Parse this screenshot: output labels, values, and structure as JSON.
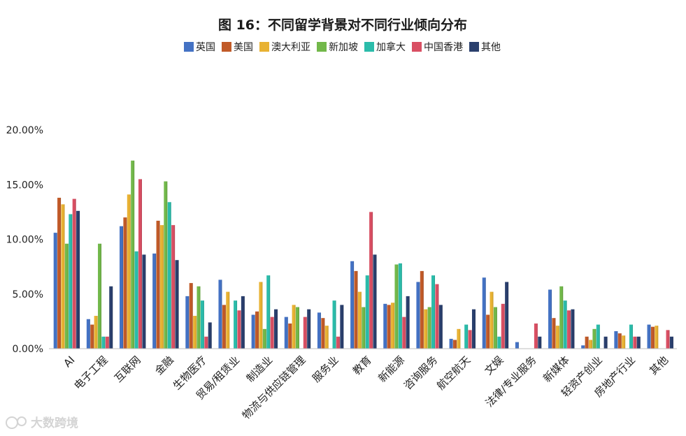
{
  "chart_data": {
    "type": "bar",
    "title": "图 16：不同留学背景对不同行业倾向分布",
    "ylim": [
      0,
      20
    ],
    "yticks": [
      "0.00%",
      "5.00%",
      "10.00%",
      "15.00%",
      "20.00%"
    ],
    "ytick_values": [
      0,
      5,
      10,
      15,
      20
    ],
    "grid": false,
    "legend_position": "top",
    "categories": [
      "AI",
      "电子工程",
      "互联网",
      "金融",
      "生物医疗",
      "贸易/租赁业",
      "制造业",
      "物流与供应链管理",
      "服务业",
      "教育",
      "新能源",
      "咨询服务",
      "航空航天",
      "文娱",
      "法律/专业服务",
      "新媒体",
      "轻资产创业",
      "房地产行业",
      "其他"
    ],
    "series": [
      {
        "name": "英国",
        "color": "#4472c4",
        "values": [
          10.6,
          2.7,
          11.2,
          8.7,
          4.8,
          6.3,
          3.1,
          2.9,
          3.3,
          8.0,
          4.1,
          6.1,
          0.9,
          6.5,
          0.6,
          5.4,
          0.3,
          1.6,
          2.2
        ]
      },
      {
        "name": "美国",
        "color": "#c15a28",
        "values": [
          13.8,
          2.2,
          12.0,
          11.7,
          6.0,
          4.0,
          3.4,
          2.3,
          2.8,
          7.1,
          4.0,
          7.1,
          0.8,
          3.1,
          0.0,
          2.8,
          1.1,
          1.4,
          2.0
        ]
      },
      {
        "name": "澳大利亚",
        "color": "#e8b233",
        "values": [
          13.2,
          3.0,
          14.1,
          11.3,
          3.0,
          5.2,
          6.1,
          4.0,
          2.1,
          5.2,
          4.2,
          3.6,
          1.8,
          5.2,
          0.0,
          2.1,
          0.8,
          1.2,
          2.1
        ]
      },
      {
        "name": "新加坡",
        "color": "#72b84a",
        "values": [
          9.6,
          9.6,
          17.2,
          15.3,
          5.7,
          0.0,
          1.8,
          3.8,
          0.0,
          3.8,
          7.7,
          3.8,
          0.0,
          3.8,
          0.0,
          5.7,
          1.8,
          0.0,
          0.0
        ]
      },
      {
        "name": "加拿大",
        "color": "#2bbcaa",
        "values": [
          12.3,
          1.1,
          8.9,
          13.4,
          4.4,
          4.4,
          6.7,
          0.0,
          4.4,
          6.7,
          7.8,
          6.7,
          2.2,
          1.1,
          0.0,
          4.4,
          2.2,
          2.2,
          0.0
        ]
      },
      {
        "name": "中国香港",
        "color": "#d94f63",
        "values": [
          13.7,
          1.1,
          15.5,
          11.3,
          1.1,
          3.5,
          2.9,
          2.9,
          1.1,
          12.5,
          2.9,
          5.9,
          1.7,
          4.1,
          2.3,
          3.5,
          0.0,
          1.1,
          1.7
        ]
      },
      {
        "name": "其他",
        "color": "#2a3f6d",
        "values": [
          12.6,
          5.7,
          8.6,
          8.1,
          2.4,
          4.8,
          3.6,
          3.6,
          4.0,
          8.6,
          4.8,
          4.0,
          3.6,
          6.1,
          1.1,
          3.6,
          1.1,
          1.1,
          1.1
        ]
      }
    ]
  },
  "watermark": "大数跨境"
}
